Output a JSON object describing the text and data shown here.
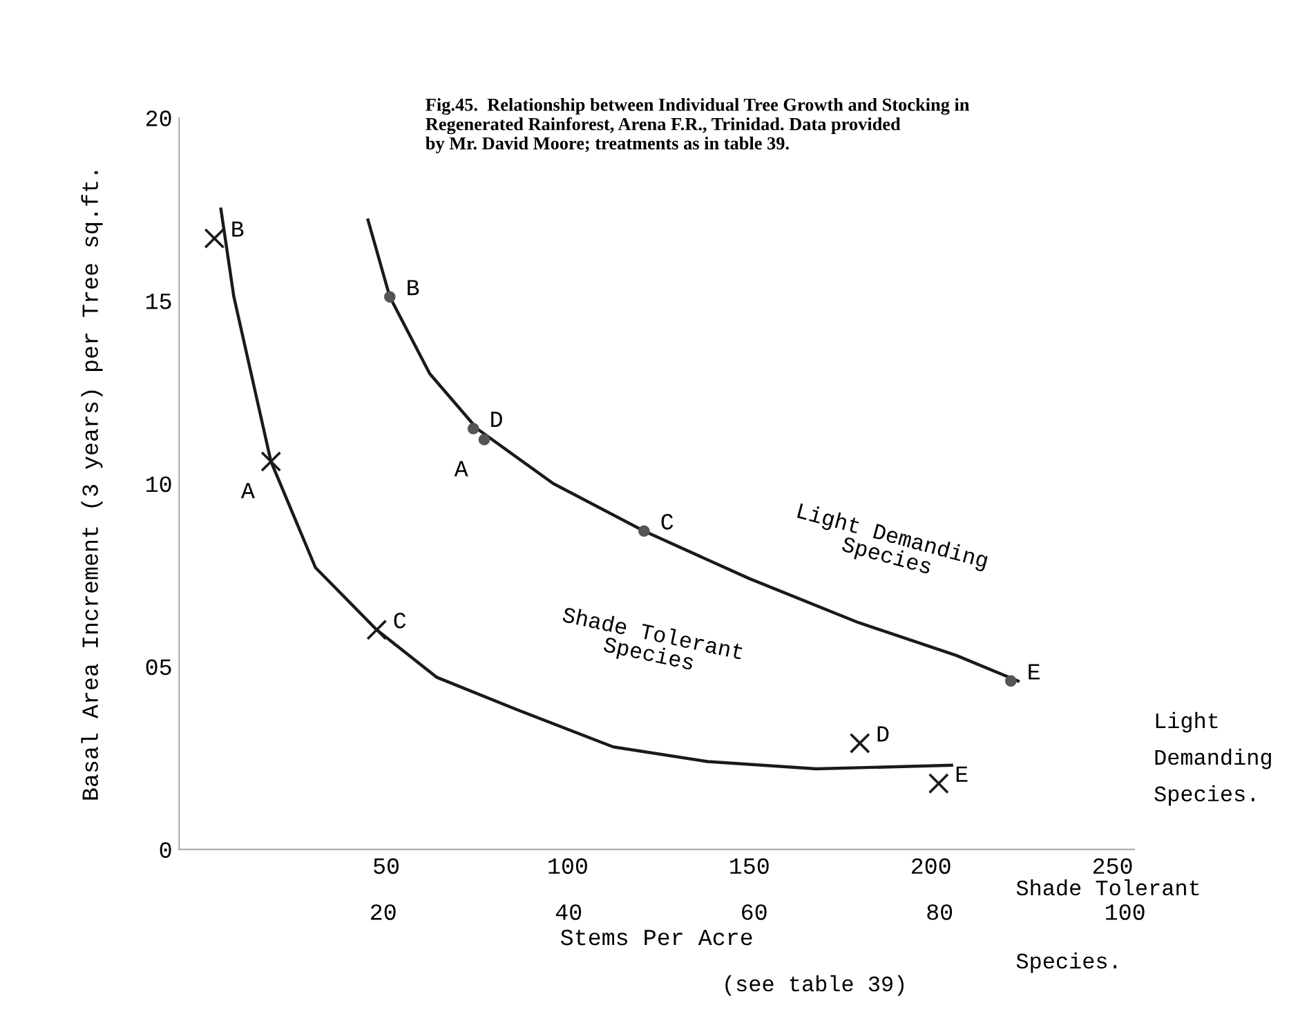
{
  "chart_data": {
    "type": "line",
    "title": "Fig.45.  Relationship between Individual Tree Growth and Stocking in\nRegenerated Rainforest, Arena F.R., Trinidad. Data provided\nby Mr. David Moore; treatments as in table 39.",
    "xlabel": "Stems Per Acre",
    "ylabel": "Basal Area Increment (3 years) per Tree sq.ft.",
    "xlim": [
      -7,
      256
    ],
    "xticks": [
      50,
      100,
      150,
      200,
      250
    ],
    "x2lim": [
      -2,
      101
    ],
    "x2ticks": [
      20,
      40,
      60,
      80,
      100
    ],
    "ylim": [
      0,
      20
    ],
    "yticks": [
      0,
      {
        "value": 5,
        "label": "05"
      },
      10,
      15,
      20
    ],
    "series": [
      {
        "color": "#1a1a1a",
        "x": [
          45,
          51,
          62,
          75,
          96,
          121,
          150,
          180,
          207,
          224
        ],
        "values": [
          17.2,
          15.1,
          13.0,
          11.5,
          10.0,
          8.7,
          7.4,
          6.2,
          5.3,
          4.6
        ]
      },
      {
        "type": "scatter",
        "marker": "circle",
        "color": "#555555",
        "x": [
          51,
          74,
          77,
          121,
          222
        ],
        "values": [
          15.1,
          11.5,
          11.2,
          8.7,
          4.6
        ]
      },
      {
        "axis": "x2",
        "color": "#1a1a1a",
        "x": [
          2.5,
          3.9,
          7.9,
          12.7,
          19.3,
          25.8,
          34.6,
          44.8,
          55,
          66.7,
          81.3
        ],
        "values": [
          17.5,
          15.1,
          10.6,
          7.7,
          6.0,
          4.7,
          3.8,
          2.8,
          2.4,
          2.2,
          2.3
        ]
      },
      {
        "type": "scatter",
        "axis": "x2",
        "marker": "cross",
        "color": "#1a1a1a",
        "x": [
          1.8,
          7.9,
          19.3,
          71.4,
          79.9
        ],
        "values": [
          16.7,
          10.6,
          6.0,
          2.9,
          1.8
        ]
      }
    ],
    "annotations": [
      "B",
      "D",
      "A",
      "C",
      "E",
      "B",
      "A",
      "C",
      "D",
      "E",
      "Light Demanding\nSpecies",
      "Shade Tolerant\nSpecies",
      "Light\nDemanding\nSpecies.",
      "Shade Tolerant\n\nSpecies.",
      "(see table 39)"
    ]
  }
}
